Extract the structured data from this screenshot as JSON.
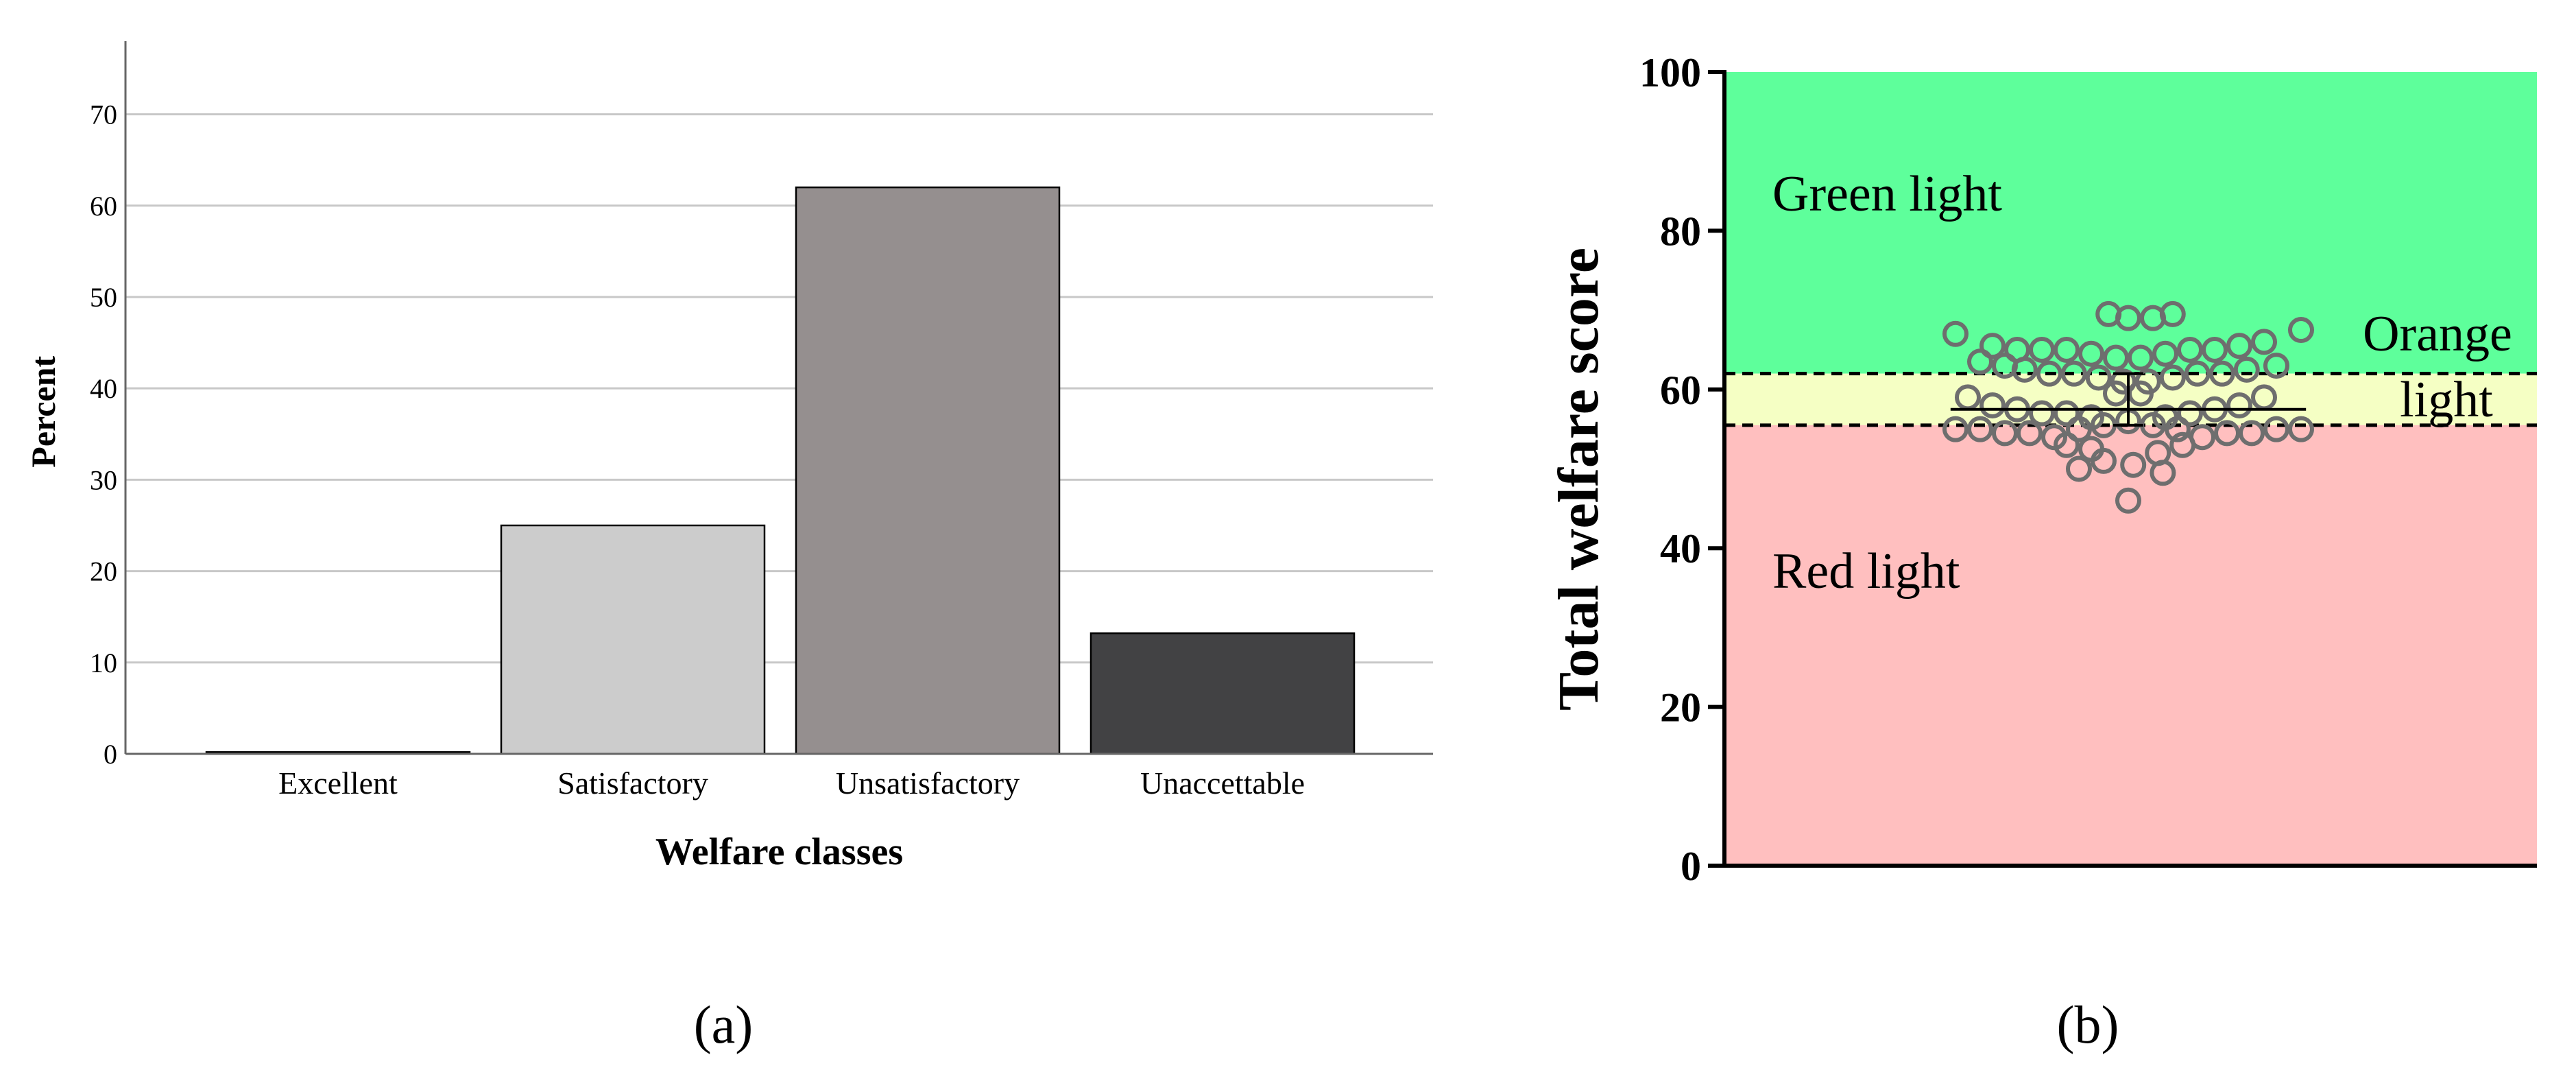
{
  "figure": {
    "panel_a_label": "(a)",
    "panel_b_label": "(b)"
  },
  "chart_data": [
    {
      "type": "bar",
      "categories": [
        "Excellent",
        "Satisfactory",
        "Unsatisfactory",
        "Unaccettable"
      ],
      "values": [
        0.2,
        25,
        62,
        13.2
      ],
      "colors": [
        "#000000",
        "#cccccc",
        "#958f8f",
        "#424244"
      ],
      "xlabel": "Welfare classes",
      "ylabel": "Percent",
      "ylim": [
        0,
        78
      ],
      "yticks": [
        0,
        10,
        20,
        30,
        40,
        50,
        60,
        70
      ],
      "grid": "horizontal"
    },
    {
      "type": "scatter",
      "ylabel": "Total welfare score",
      "ylim": [
        0,
        100
      ],
      "yticks": [
        0,
        20,
        40,
        60,
        80,
        100
      ],
      "zones": [
        {
          "label": "Green light",
          "from": 62,
          "to": 100,
          "color": "#5eff9b"
        },
        {
          "label": "Orange light",
          "label_lines": [
            "Orange",
            "light"
          ],
          "from": 55.5,
          "to": 62,
          "color": "#f5ffc4"
        },
        {
          "label": "Red light",
          "from": 0,
          "to": 55.5,
          "color": "#ffbfbf"
        }
      ],
      "thresholds": [
        55.5,
        62
      ],
      "mean": 57.5,
      "error_bar": [
        55.5,
        62
      ],
      "points": [
        {
          "x": -0.7,
          "y": 67
        },
        {
          "x": 0.7,
          "y": 67.5
        },
        {
          "x": -0.08,
          "y": 69.5
        },
        {
          "x": 0,
          "y": 69
        },
        {
          "x": 0.1,
          "y": 69
        },
        {
          "x": 0.18,
          "y": 69.5
        },
        {
          "x": -0.55,
          "y": 65.5
        },
        {
          "x": -0.45,
          "y": 65
        },
        {
          "x": -0.35,
          "y": 65
        },
        {
          "x": -0.25,
          "y": 65
        },
        {
          "x": -0.15,
          "y": 64.5
        },
        {
          "x": -0.05,
          "y": 64
        },
        {
          "x": 0.05,
          "y": 64
        },
        {
          "x": 0.15,
          "y": 64.5
        },
        {
          "x": 0.25,
          "y": 65
        },
        {
          "x": 0.35,
          "y": 65
        },
        {
          "x": 0.45,
          "y": 65.5
        },
        {
          "x": 0.55,
          "y": 66
        },
        {
          "x": -0.6,
          "y": 63.5
        },
        {
          "x": 0.6,
          "y": 63
        },
        {
          "x": -0.5,
          "y": 63
        },
        {
          "x": -0.42,
          "y": 62.5
        },
        {
          "x": -0.32,
          "y": 62
        },
        {
          "x": -0.22,
          "y": 62
        },
        {
          "x": -0.12,
          "y": 61.5
        },
        {
          "x": -0.02,
          "y": 61
        },
        {
          "x": 0.08,
          "y": 61
        },
        {
          "x": 0.18,
          "y": 61.5
        },
        {
          "x": 0.28,
          "y": 62
        },
        {
          "x": 0.38,
          "y": 62
        },
        {
          "x": 0.48,
          "y": 62.5
        },
        {
          "x": -0.65,
          "y": 59
        },
        {
          "x": -0.55,
          "y": 58
        },
        {
          "x": -0.45,
          "y": 57.5
        },
        {
          "x": -0.35,
          "y": 57
        },
        {
          "x": -0.25,
          "y": 57
        },
        {
          "x": -0.15,
          "y": 56.5
        },
        {
          "x": -0.05,
          "y": 59.5
        },
        {
          "x": 0.05,
          "y": 59.5
        },
        {
          "x": 0.15,
          "y": 56.5
        },
        {
          "x": 0.25,
          "y": 57
        },
        {
          "x": 0.35,
          "y": 57.5
        },
        {
          "x": 0.45,
          "y": 58
        },
        {
          "x": 0.55,
          "y": 59
        },
        {
          "x": -0.7,
          "y": 55
        },
        {
          "x": -0.6,
          "y": 55
        },
        {
          "x": -0.5,
          "y": 54.5
        },
        {
          "x": -0.4,
          "y": 54.5
        },
        {
          "x": -0.3,
          "y": 54
        },
        {
          "x": -0.2,
          "y": 55
        },
        {
          "x": -0.1,
          "y": 55.5
        },
        {
          "x": 0,
          "y": 56
        },
        {
          "x": 0.1,
          "y": 55.5
        },
        {
          "x": 0.2,
          "y": 55
        },
        {
          "x": 0.3,
          "y": 54
        },
        {
          "x": 0.4,
          "y": 54.5
        },
        {
          "x": 0.5,
          "y": 54.5
        },
        {
          "x": 0.6,
          "y": 55
        },
        {
          "x": 0.7,
          "y": 55
        },
        {
          "x": -0.25,
          "y": 53
        },
        {
          "x": -0.15,
          "y": 52.5
        },
        {
          "x": 0.12,
          "y": 52
        },
        {
          "x": 0.22,
          "y": 53
        },
        {
          "x": -0.2,
          "y": 50
        },
        {
          "x": -0.1,
          "y": 51
        },
        {
          "x": 0.02,
          "y": 50.5
        },
        {
          "x": 0.14,
          "y": 49.5
        },
        {
          "x": 0,
          "y": 46
        }
      ]
    }
  ]
}
